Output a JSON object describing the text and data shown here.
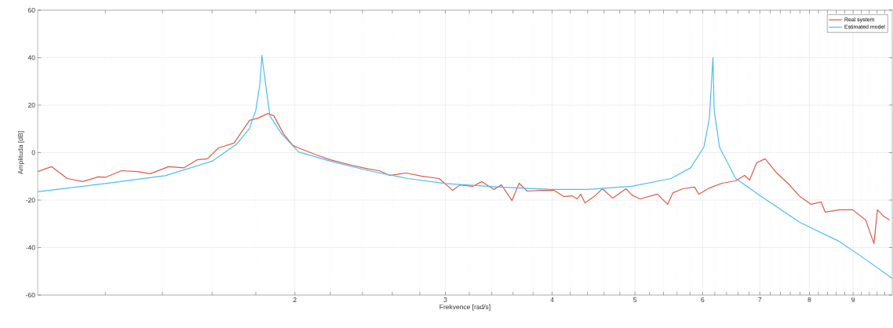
{
  "chart_data": {
    "type": "line",
    "xlabel": "Frekvence [rad/s]",
    "ylabel": "Amplituda [dB]",
    "log": "x",
    "grid": true,
    "legend": "top right",
    "xlim": [
      1,
      10
    ],
    "ylim": [
      -60,
      60
    ],
    "xticks": [
      {
        "value": 1.2,
        "label": null
      },
      {
        "value": 1.4,
        "label": null
      },
      {
        "value": 1.6,
        "label": null
      },
      {
        "value": 1.8,
        "label": null
      },
      2,
      {
        "value": 2.2,
        "label": null
      },
      {
        "value": 2.4,
        "label": null
      },
      {
        "value": 2.6,
        "label": null
      },
      {
        "value": 2.8,
        "label": null
      },
      3,
      {
        "value": 3.2,
        "label": null
      },
      {
        "value": 3.4,
        "label": null
      },
      {
        "value": 3.6,
        "label": null
      },
      {
        "value": 3.8,
        "label": null
      },
      4,
      {
        "value": 4.2,
        "label": null
      },
      {
        "value": 4.4,
        "label": null
      },
      {
        "value": 4.6,
        "label": null
      },
      {
        "value": 4.8,
        "label": null
      },
      5,
      {
        "value": 5.2,
        "label": null
      },
      {
        "value": 5.4,
        "label": null
      },
      {
        "value": 5.6,
        "label": null
      },
      {
        "value": 5.8,
        "label": null
      },
      6,
      {
        "value": 6.2,
        "label": null
      },
      {
        "value": 6.4,
        "label": null
      },
      {
        "value": 6.6,
        "label": null
      },
      {
        "value": 6.8,
        "label": null
      },
      7,
      {
        "value": 7.2,
        "label": null
      },
      {
        "value": 7.4,
        "label": null
      },
      {
        "value": 7.6,
        "label": null
      },
      {
        "value": 7.8,
        "label": null
      },
      8,
      {
        "value": 8.2,
        "label": null
      },
      {
        "value": 8.4,
        "label": null
      },
      {
        "value": 8.6,
        "label": null
      },
      {
        "value": 8.8,
        "label": null
      },
      9,
      {
        "value": 9.2,
        "label": null
      },
      {
        "value": 9.4,
        "label": null
      },
      {
        "value": 9.6,
        "label": null
      },
      {
        "value": 9.8,
        "label": null
      }
    ],
    "yticks": [
      -60,
      -40,
      -20,
      0,
      20,
      40,
      60
    ],
    "series": [
      {
        "name": "Real system",
        "color": "#d95c4a",
        "x": [
          1.0,
          1.038,
          1.083,
          1.129,
          1.178,
          1.2,
          1.254,
          1.308,
          1.355,
          1.423,
          1.484,
          1.538,
          1.58,
          1.628,
          1.697,
          1.77,
          1.81,
          1.86,
          1.89,
          1.94,
          1.99,
          2.02,
          2.12,
          2.2,
          2.33,
          2.44,
          2.51,
          2.58,
          2.7,
          2.81,
          2.95,
          3.06,
          3.12,
          3.23,
          3.31,
          3.42,
          3.49,
          3.59,
          3.66,
          3.74,
          3.88,
          4.02,
          4.13,
          4.22,
          4.28,
          4.32,
          4.37,
          4.49,
          4.58,
          4.71,
          4.88,
          4.96,
          5.07,
          5.31,
          5.46,
          5.54,
          5.69,
          5.87,
          5.94,
          6.11,
          6.32,
          6.56,
          6.72,
          6.81,
          6.94,
          7.1,
          7.33,
          7.55,
          7.8,
          8.04,
          8.26,
          8.35,
          8.67,
          8.99,
          9.31,
          9.52,
          9.61,
          9.77,
          9.93
        ],
        "values": [
          -8,
          -5.9,
          -10.9,
          -12.2,
          -10.2,
          -10.4,
          -7.6,
          -8,
          -8.9,
          -5.9,
          -6.4,
          -3,
          -2.6,
          2,
          4,
          13.6,
          14.5,
          16.5,
          15.5,
          7.9,
          3,
          2,
          -1,
          -3,
          -5.3,
          -6.9,
          -7.6,
          -9.6,
          -8.6,
          -9.9,
          -10.9,
          -15.9,
          -13.6,
          -14.2,
          -12.2,
          -15.5,
          -13.6,
          -20.2,
          -12.9,
          -16.2,
          -15.9,
          -15.9,
          -18.5,
          -18.2,
          -19.5,
          -17.5,
          -21.2,
          -18.2,
          -15.2,
          -19.2,
          -15.2,
          -17.9,
          -19.5,
          -17.5,
          -21.8,
          -16.9,
          -15.2,
          -14.5,
          -17.5,
          -14.9,
          -12.9,
          -11.9,
          -9.6,
          -11.6,
          -4.3,
          -2.6,
          -8.6,
          -12.9,
          -18.5,
          -21.8,
          -20.8,
          -25.1,
          -24.1,
          -24.1,
          -28.4,
          -38.3,
          -24.1,
          -26.8,
          -28.4
        ]
      },
      {
        "name": "Estimated model",
        "color": "#4dbeee",
        "x": [
          1.0,
          1.2,
          1.41,
          1.6,
          1.71,
          1.77,
          1.8,
          1.82,
          1.83,
          1.85,
          1.87,
          1.93,
          2.02,
          2.2,
          2.44,
          2.71,
          3.0,
          3.47,
          3.99,
          4.4,
          4.96,
          5.51,
          5.81,
          6.02,
          6.11,
          6.17,
          6.19,
          6.28,
          6.56,
          7.03,
          7.8,
          8.67,
          9.31,
          10
        ],
        "values": [
          -16.5,
          -13,
          -9.7,
          -3.6,
          3.6,
          10.2,
          17.8,
          28.8,
          41,
          27.8,
          15.5,
          7.9,
          0.3,
          -3.6,
          -7.6,
          -10.9,
          -13,
          -14.5,
          -15.5,
          -15.5,
          -14.2,
          -10.9,
          -6.4,
          2.3,
          14.5,
          40,
          17.8,
          2.3,
          -10.9,
          -18.5,
          -29.4,
          -37.4,
          -45,
          -53
        ]
      }
    ]
  }
}
